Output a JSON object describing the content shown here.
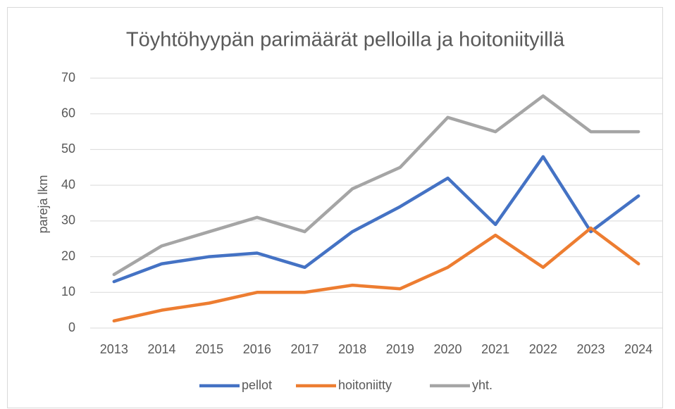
{
  "chart_data": {
    "type": "line",
    "title": "Töyhtöhyypän parimäärät pelloilla ja hoitoniityillä",
    "ylabel": "pareja lkm",
    "categories": [
      "2013",
      "2014",
      "2015",
      "2016",
      "2017",
      "2018",
      "2019",
      "2020",
      "2021",
      "2022",
      "2023",
      "2024"
    ],
    "series": [
      {
        "name": "pellot",
        "color": "#4472c4",
        "values": [
          13,
          18,
          20,
          21,
          17,
          27,
          34,
          42,
          29,
          48,
          27,
          37
        ]
      },
      {
        "name": "hoitoniitty",
        "color": "#ed7d31",
        "values": [
          2,
          5,
          7,
          10,
          10,
          12,
          11,
          17,
          26,
          17,
          28,
          18
        ]
      },
      {
        "name": "yht.",
        "color": "#a5a5a5",
        "values": [
          15,
          23,
          27,
          31,
          27,
          39,
          45,
          59,
          55,
          65,
          55,
          55
        ]
      }
    ],
    "ylim": [
      0,
      70
    ],
    "yticks": [
      0,
      10,
      20,
      30,
      40,
      50,
      60,
      70
    ],
    "grid": true,
    "legend": "bottom"
  }
}
